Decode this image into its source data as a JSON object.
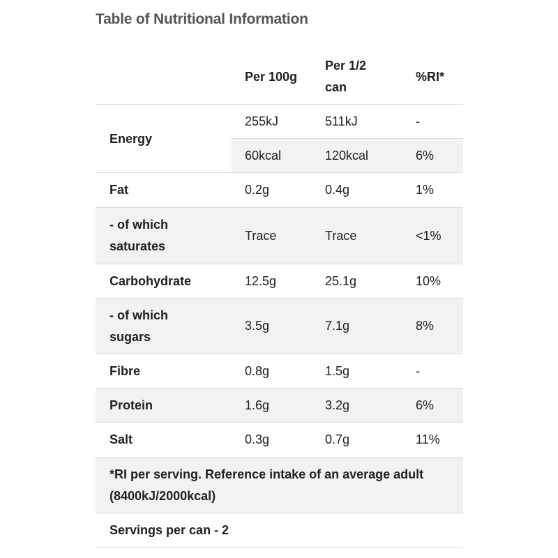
{
  "title": "Table of Nutritional Information",
  "columns": {
    "per100": "Per 100g",
    "perHalf": "Per 1/2 can",
    "ri": "%RI*"
  },
  "energy": {
    "label": "Energy",
    "kj": {
      "per100": "255kJ",
      "perHalf": "511kJ",
      "ri": "-"
    },
    "kcal": {
      "per100": "60kcal",
      "perHalf": "120kcal",
      "ri": "6%"
    }
  },
  "rows": [
    {
      "label": "Fat",
      "per100": "0.2g",
      "perHalf": "0.4g",
      "ri": "1%"
    },
    {
      "label": "- of which saturates",
      "per100": "Trace",
      "perHalf": "Trace",
      "ri": "<1%"
    },
    {
      "label": "Carbohydrate",
      "per100": "12.5g",
      "perHalf": "25.1g",
      "ri": "10%"
    },
    {
      "label": "- of which sugars",
      "per100": "3.5g",
      "perHalf": "7.1g",
      "ri": "8%"
    },
    {
      "label": "Fibre",
      "per100": "0.8g",
      "perHalf": "1.5g",
      "ri": "-"
    },
    {
      "label": "Protein",
      "per100": "1.6g",
      "perHalf": "3.2g",
      "ri": "6%"
    },
    {
      "label": "Salt",
      "per100": "0.3g",
      "perHalf": "0.7g",
      "ri": "11%"
    }
  ],
  "footnote": "*RI per serving. Reference intake of an average adult (8400kJ/2000kcal)",
  "servings": "Servings per can - 2"
}
